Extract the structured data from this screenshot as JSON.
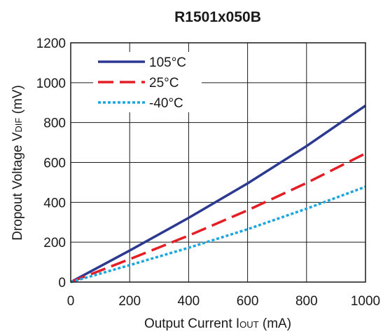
{
  "chart_data": {
    "type": "line",
    "title": "R1501x050B",
    "xlabel": {
      "main": "Output Current I",
      "sub": "OUT",
      "unit": " (mA)"
    },
    "ylabel": {
      "main": "Dropout  Voltage V",
      "sub": "DIF",
      "unit": " (mV)"
    },
    "xlim": [
      0,
      1000
    ],
    "ylim": [
      0,
      1200
    ],
    "xticks": [
      "0",
      "200",
      "400",
      "600",
      "800",
      "1000"
    ],
    "yticks": [
      "0",
      "200",
      "400",
      "600",
      "800",
      "1000",
      "1200"
    ],
    "grid": true,
    "legend_position": "top-left",
    "series": [
      {
        "name": "105°C",
        "color": "#2b3990",
        "dash": "solid",
        "x": [
          0,
          200,
          400,
          600,
          800,
          1000
        ],
        "y": [
          0,
          158,
          322,
          495,
          682,
          885
        ]
      },
      {
        "name": "25°C",
        "color": "#e31e24",
        "dash": "dashed",
        "x": [
          0,
          200,
          400,
          600,
          800,
          1000
        ],
        "y": [
          0,
          115,
          233,
          360,
          497,
          645
        ]
      },
      {
        "name": "-40°C",
        "color": "#1ba6df",
        "dash": "dotted",
        "x": [
          0,
          200,
          400,
          600,
          800,
          1000
        ],
        "y": [
          0,
          85,
          172,
          265,
          368,
          478
        ]
      }
    ]
  }
}
